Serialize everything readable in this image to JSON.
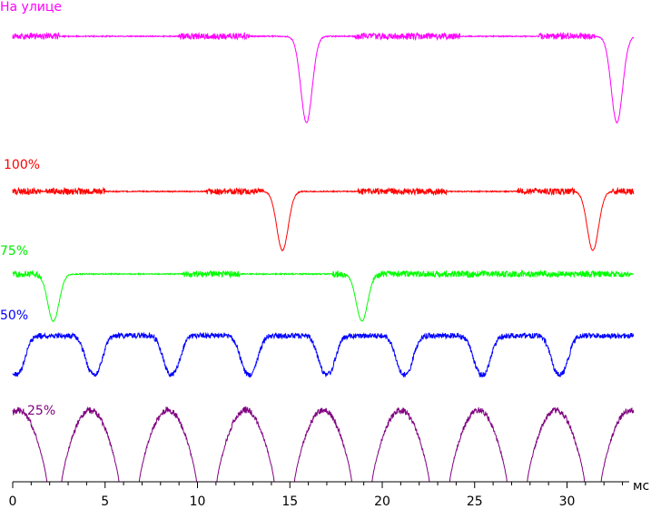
{
  "chart_data": {
    "type": "line",
    "xlabel": "мс",
    "x_ticks": [
      0,
      5,
      10,
      15,
      20,
      25,
      30
    ],
    "xlim": [
      0,
      33.7
    ],
    "grid": false,
    "series": [
      {
        "name": "На улице",
        "color": "#ff00ff",
        "period_ms": 16.8,
        "dips_ms": [
          15.9,
          32.7
        ],
        "noisy_ranges_ms": [
          [
            0,
            1.0
          ],
          [
            0.8,
            2.5
          ],
          [
            9.0,
            12.8
          ],
          [
            18.5,
            24.2
          ],
          [
            28.5,
            31.5
          ]
        ]
      },
      {
        "name": "100%",
        "color": "#ff0000",
        "period_ms": 16.8,
        "dips_ms": [
          14.6,
          31.4
        ],
        "noisy_ranges_ms": [
          [
            0,
            1.5
          ],
          [
            1.8,
            5.0
          ],
          [
            10.5,
            13.6
          ],
          [
            18.7,
            23.5
          ],
          [
            27.3,
            30.4
          ],
          [
            32.4,
            33.7
          ]
        ]
      },
      {
        "name": "75%",
        "color": "#00ff00",
        "period_ms": 16.8,
        "dips_ms": [
          2.2,
          18.9
        ],
        "noisy_ranges_ms": [
          [
            0,
            1.6
          ],
          [
            9.2,
            12.3
          ],
          [
            17.3,
            18.0
          ],
          [
            19.5,
            33.4
          ]
        ]
      },
      {
        "name": "50%",
        "color": "#0000ff",
        "period_ms": 4.2,
        "dips_ms": [
          0.2,
          4.4,
          8.6,
          12.8,
          17.0,
          21.2,
          25.4,
          29.6
        ],
        "noisy_ranges_ms": [
          [
            0,
            33.4
          ]
        ]
      },
      {
        "name": "25%",
        "color": "#800080",
        "period_ms": 4.2,
        "pulse_peaks_ms": [
          0.3,
          4.2,
          8.4,
          12.6,
          16.8,
          21.0,
          25.2,
          29.4,
          33.4
        ],
        "noisy_ranges_ms": [
          [
            0,
            33.4
          ]
        ]
      }
    ]
  }
}
